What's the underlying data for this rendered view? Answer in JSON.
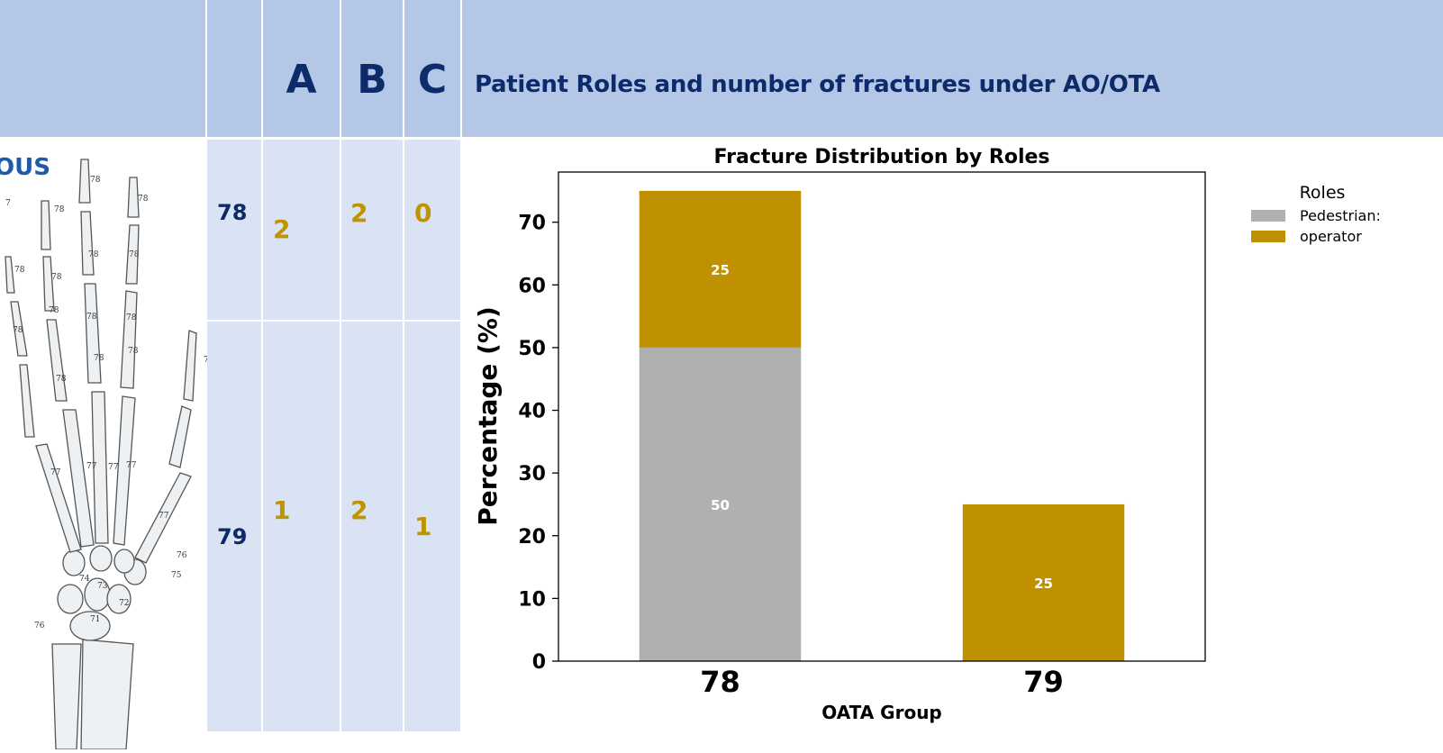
{
  "table": {
    "columns": [
      "A",
      "B",
      "C"
    ],
    "title": "Patient Roles and number of fractures under AO/OTA",
    "rows": [
      {
        "group": "78",
        "A": "2",
        "B": "2",
        "C": "0"
      },
      {
        "group": "79",
        "A": "1",
        "B": "2",
        "C": "1"
      }
    ]
  },
  "image": {
    "logo_fragment": "ous",
    "bone_labels": [
      "7",
      "78",
      "78",
      "78",
      "78",
      "78",
      "78",
      "78",
      "78",
      "78",
      "78",
      "78",
      "78",
      "78",
      "78",
      "77",
      "77",
      "77",
      "77",
      "77",
      "76",
      "75",
      "74",
      "73",
      "72",
      "71",
      "76",
      "76"
    ]
  },
  "colors": {
    "header_bg": "#b4c7e7",
    "cell_bg": "#dae3f3",
    "navy": "#0d2a6b",
    "gold": "#c09300",
    "pedestrian": "#b0b0b0",
    "operator": "#bf9000"
  },
  "chart_data": {
    "type": "bar",
    "stacked": true,
    "title": "Fracture Distribution by Roles",
    "xlabel": "OATA Group",
    "ylabel": "Percentage (%)",
    "categories": [
      "78",
      "79"
    ],
    "ylim": [
      0,
      78
    ],
    "yticks": [
      0,
      10,
      20,
      30,
      40,
      50,
      60,
      70
    ],
    "legend_title": "Roles",
    "legend_position": "outside-top-right",
    "grid": false,
    "series": [
      {
        "name": "Pedestrian:",
        "values": [
          50,
          0
        ],
        "labels": [
          "50",
          ""
        ],
        "color": "#b0b0b0"
      },
      {
        "name": "operator",
        "values": [
          25,
          25
        ],
        "labels": [
          "25",
          "25"
        ],
        "color": "#bf9000"
      }
    ]
  }
}
